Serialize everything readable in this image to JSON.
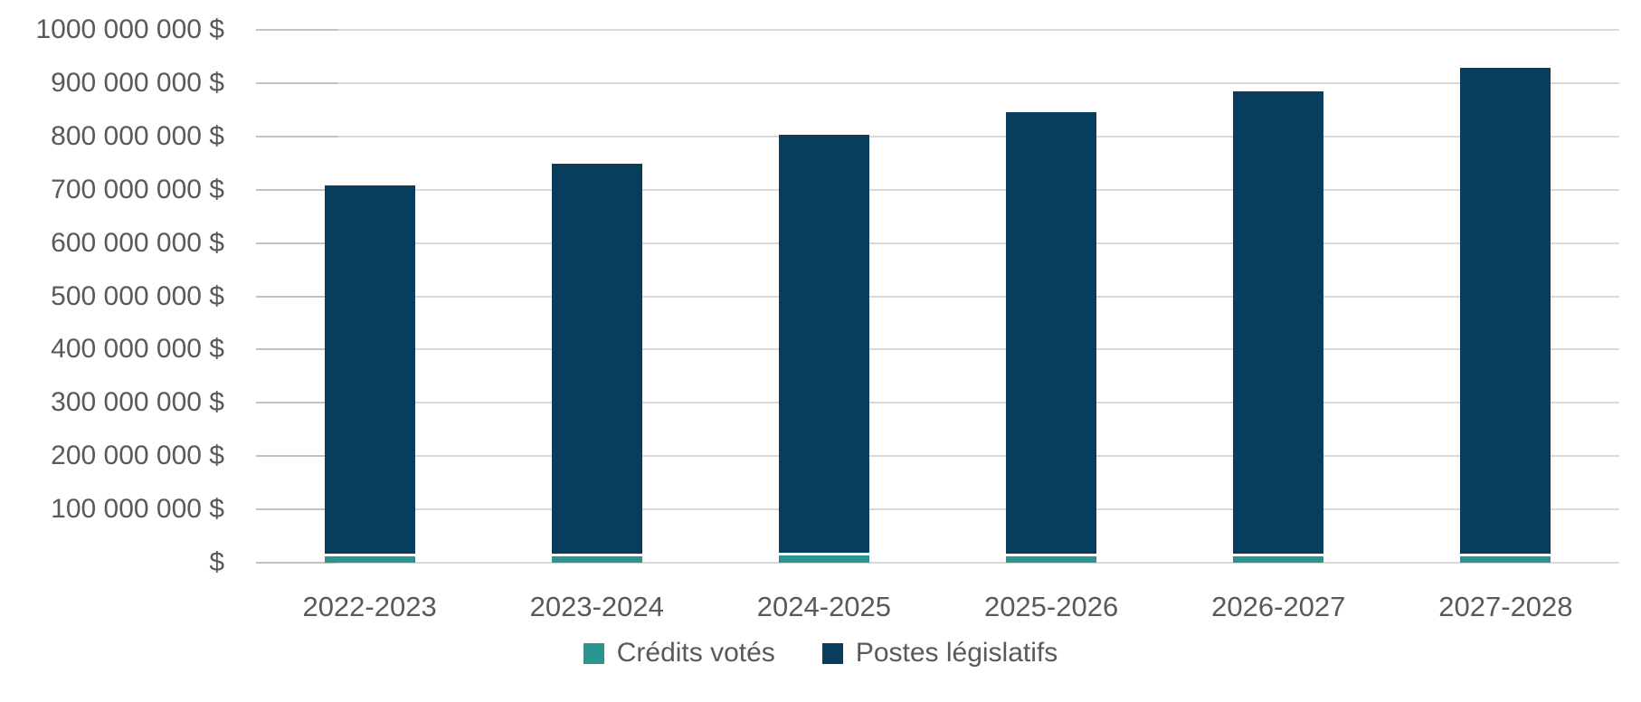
{
  "chart_data": {
    "type": "bar",
    "stacked": true,
    "title": "",
    "xlabel": "",
    "ylabel": "",
    "categories": [
      "2022-2023",
      "2023-2024",
      "2024-2025",
      "2025-2026",
      "2026-2027",
      "2027-2028"
    ],
    "series": [
      {
        "name": "Crédits votés",
        "color": "#2a958f",
        "values": [
          12000000,
          12000000,
          14000000,
          12000000,
          12000000,
          12000000
        ]
      },
      {
        "name": "Postes législatifs",
        "color": "#083d5e",
        "values": [
          696000000,
          737000000,
          789000000,
          833000000,
          873000000,
          916000000
        ]
      }
    ],
    "totals": [
      708000000,
      749000000,
      803000000,
      845000000,
      885000000,
      928000000
    ],
    "ylim": [
      0,
      1000000000
    ],
    "y_tick_interval": 100000000,
    "y_tick_labels": [
      "$",
      "100 000 000 $",
      "200 000 000 $",
      "300 000 000 $",
      "400 000 000 $",
      "500 000 000 $",
      "600 000 000 $",
      "700 000 000 $",
      "800 000 000 $",
      "900 000 000 $",
      "1000 000 000 $"
    ],
    "grid": true,
    "legend_position": "bottom",
    "colors": {
      "grid": "#d9d9d9",
      "tick": "#c2c2c2",
      "text": "#595959",
      "background": "#ffffff",
      "segment_separator": "#ffffff"
    }
  }
}
